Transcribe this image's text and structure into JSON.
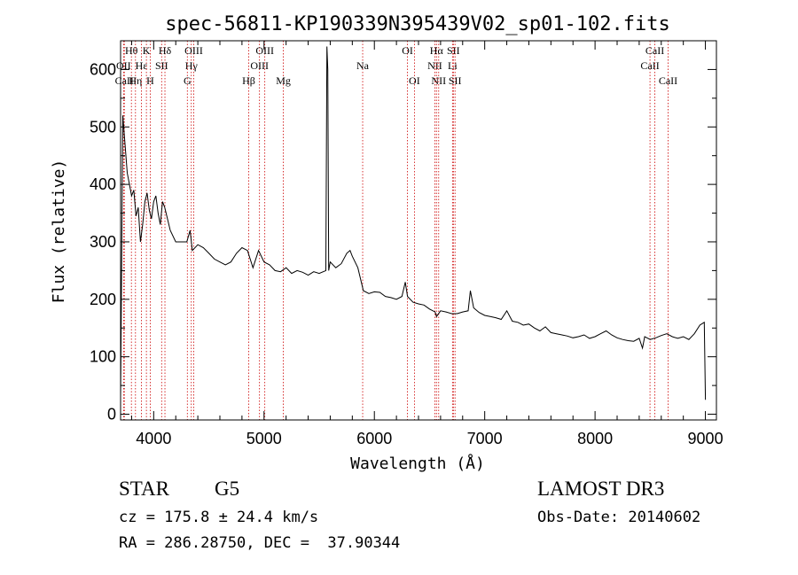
{
  "colors": {
    "axis": "#000000",
    "spectrum": "#000000",
    "line_marker": "#cc0000",
    "background": "#ffffff"
  },
  "info": {
    "object_type": "STAR",
    "subclass": "G5",
    "survey": "LAMOST DR3",
    "redshift": "cz = 175.8 ± 24.4 km/s",
    "obs_date": "Obs-Date: 20140602",
    "coords": "RA = 286.28750, DEC =  37.90344"
  },
  "chart_data": {
    "type": "line",
    "title": "spec-56811-KP190339N395439V02_sp01-102.fits",
    "xlabel": "Wavelength (Å)",
    "ylabel": "Flux (relative)",
    "xlim": [
      3700,
      9100
    ],
    "ylim": [
      -10,
      650
    ],
    "x_ticks": [
      4000,
      5000,
      6000,
      7000,
      8000,
      9000
    ],
    "y_ticks": [
      0,
      100,
      200,
      300,
      400,
      500,
      600
    ],
    "series": [
      {
        "name": "spectrum",
        "x": [
          3700,
          3720,
          3740,
          3760,
          3780,
          3800,
          3820,
          3840,
          3860,
          3880,
          3900,
          3920,
          3940,
          3960,
          3980,
          4000,
          4020,
          4040,
          4060,
          4080,
          4100,
          4150,
          4200,
          4250,
          4300,
          4330,
          4350,
          4400,
          4450,
          4500,
          4550,
          4600,
          4650,
          4700,
          4750,
          4800,
          4850,
          4900,
          4950,
          5000,
          5050,
          5100,
          5150,
          5200,
          5250,
          5300,
          5350,
          5400,
          5450,
          5500,
          5560,
          5570,
          5578,
          5586,
          5600,
          5650,
          5700,
          5750,
          5780,
          5800,
          5850,
          5900,
          5950,
          6000,
          6050,
          6100,
          6150,
          6200,
          6250,
          6280,
          6300,
          6350,
          6400,
          6450,
          6500,
          6550,
          6563,
          6600,
          6650,
          6700,
          6750,
          6800,
          6850,
          6870,
          6900,
          6950,
          7000,
          7050,
          7100,
          7150,
          7200,
          7250,
          7300,
          7350,
          7400,
          7450,
          7500,
          7550,
          7600,
          7650,
          7700,
          7750,
          7800,
          7850,
          7900,
          7950,
          8000,
          8050,
          8100,
          8150,
          8200,
          8250,
          8300,
          8350,
          8400,
          8430,
          8450,
          8500,
          8550,
          8600,
          8650,
          8700,
          8750,
          8800,
          8850,
          8900,
          8950,
          8990,
          9000
        ],
        "y": [
          30,
          520,
          470,
          420,
          400,
          380,
          390,
          345,
          360,
          300,
          330,
          370,
          385,
          355,
          340,
          370,
          380,
          350,
          330,
          370,
          360,
          320,
          300,
          300,
          300,
          320,
          285,
          295,
          290,
          280,
          270,
          265,
          260,
          265,
          280,
          290,
          285,
          255,
          285,
          265,
          260,
          250,
          248,
          255,
          245,
          250,
          247,
          242,
          248,
          245,
          250,
          640,
          600,
          250,
          265,
          255,
          262,
          280,
          285,
          275,
          255,
          215,
          210,
          213,
          212,
          205,
          203,
          200,
          205,
          230,
          205,
          195,
          192,
          190,
          183,
          178,
          170,
          180,
          178,
          175,
          175,
          178,
          180,
          215,
          185,
          177,
          172,
          170,
          168,
          165,
          180,
          162,
          160,
          155,
          157,
          150,
          145,
          152,
          142,
          140,
          138,
          136,
          133,
          135,
          138,
          132,
          135,
          140,
          145,
          138,
          133,
          130,
          128,
          127,
          132,
          115,
          135,
          130,
          133,
          137,
          140,
          135,
          132,
          135,
          130,
          140,
          155,
          160,
          25
        ]
      }
    ],
    "line_markers": [
      {
        "label": "Hθ",
        "wavelength": 3798,
        "row": 0
      },
      {
        "label": "OII",
        "wavelength": 3727,
        "row": 1
      },
      {
        "label": "CaII",
        "wavelength": 3734,
        "row": 2
      },
      {
        "label": "Hη",
        "wavelength": 3835,
        "row": 2
      },
      {
        "label": "Hε",
        "wavelength": 3889,
        "row": 1
      },
      {
        "label": "K",
        "wavelength": 3934,
        "row": 0
      },
      {
        "label": "H",
        "wavelength": 3969,
        "row": 2
      },
      {
        "label": "SII",
        "wavelength": 4072,
        "row": 1
      },
      {
        "label": "Hδ",
        "wavelength": 4102,
        "row": 0
      },
      {
        "label": "Hγ",
        "wavelength": 4341,
        "row": 1
      },
      {
        "label": "G",
        "wavelength": 4305,
        "row": 2
      },
      {
        "label": "OIII",
        "wavelength": 4363,
        "row": 0
      },
      {
        "label": "Hβ",
        "wavelength": 4861,
        "row": 2
      },
      {
        "label": "OIII",
        "wavelength": 4959,
        "row": 1
      },
      {
        "label": "OIII",
        "wavelength": 5007,
        "row": 0
      },
      {
        "label": "Mg",
        "wavelength": 5175,
        "row": 2
      },
      {
        "label": "Na",
        "wavelength": 5894,
        "row": 1
      },
      {
        "label": "OI",
        "wavelength": 6300,
        "row": 0
      },
      {
        "label": "OI",
        "wavelength": 6363,
        "row": 2
      },
      {
        "label": "NII",
        "wavelength": 6548,
        "row": 1
      },
      {
        "label": "NII",
        "wavelength": 6583,
        "row": 2
      },
      {
        "label": "Hα",
        "wavelength": 6563,
        "row": 0
      },
      {
        "label": "Li",
        "wavelength": 6708,
        "row": 1
      },
      {
        "label": "SII",
        "wavelength": 6716,
        "row": 0
      },
      {
        "label": "SII",
        "wavelength": 6731,
        "row": 2
      },
      {
        "label": "CaII",
        "wavelength": 8498,
        "row": 1
      },
      {
        "label": "CaII",
        "wavelength": 8542,
        "row": 0
      },
      {
        "label": "CaII",
        "wavelength": 8662,
        "row": 2
      }
    ]
  }
}
